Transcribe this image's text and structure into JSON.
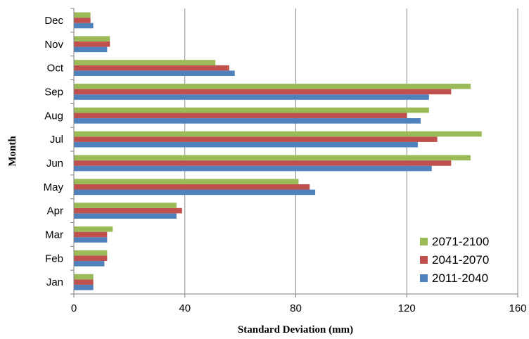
{
  "chart_data": {
    "type": "bar",
    "orientation": "horizontal",
    "categories": [
      "Jan",
      "Feb",
      "Mar",
      "Apr",
      "May",
      "Jun",
      "Jul",
      "Aug",
      "Sep",
      "Oct",
      "Nov",
      "Dec"
    ],
    "series": [
      {
        "name": "2011-2040",
        "color": "#4F81BD",
        "values": [
          7,
          11,
          12,
          37,
          87,
          129,
          124,
          125,
          128,
          58,
          12,
          7
        ]
      },
      {
        "name": "2041-2070",
        "color": "#C0504D",
        "values": [
          7,
          12,
          12,
          39,
          85,
          136,
          131,
          120,
          136,
          56,
          13,
          6
        ]
      },
      {
        "name": "2071-2100",
        "color": "#9BBB59",
        "values": [
          7,
          12,
          14,
          37,
          81,
          143,
          147,
          128,
          143,
          51,
          13,
          6
        ]
      }
    ],
    "legend_order": [
      "2071-2100",
      "2041-2070",
      "2011-2040"
    ],
    "xlabel": "Standard Deviation (mm)",
    "ylabel": "Month",
    "xlim": [
      0,
      160
    ],
    "xticks": [
      0,
      40,
      80,
      120,
      160
    ],
    "grid": "vertical",
    "legend_position": "bottom-right"
  }
}
